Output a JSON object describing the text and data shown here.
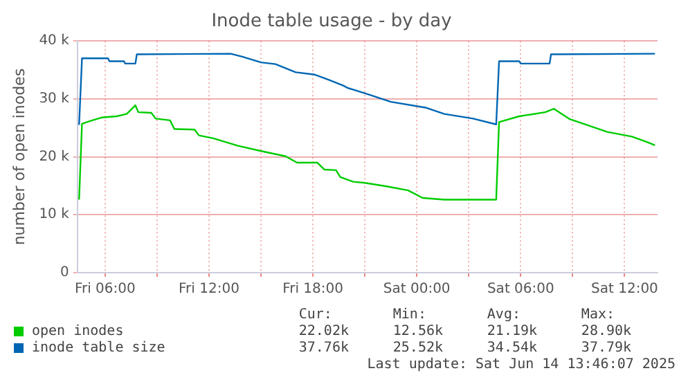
{
  "chart_data": {
    "type": "line",
    "title": "Inode table usage - by day",
    "ylabel": "number of open inodes",
    "xlim": [
      "2025-06-13T04:24",
      "2025-06-14T13:54"
    ],
    "xticks": [
      {
        "value": "2025-06-13T06:00",
        "label": "Fri 06:00"
      },
      {
        "value": "2025-06-13T09:00",
        "label": null
      },
      {
        "value": "2025-06-13T12:00",
        "label": "Fri 12:00"
      },
      {
        "value": "2025-06-13T15:00",
        "label": null
      },
      {
        "value": "2025-06-13T18:00",
        "label": "Fri 18:00"
      },
      {
        "value": "2025-06-13T21:00",
        "label": null
      },
      {
        "value": "2025-06-14T00:00",
        "label": "Sat 00:00"
      },
      {
        "value": "2025-06-14T03:00",
        "label": null
      },
      {
        "value": "2025-06-14T06:00",
        "label": "Sat 06:00"
      },
      {
        "value": "2025-06-14T09:00",
        "label": null
      },
      {
        "value": "2025-06-14T12:00",
        "label": "Sat 12:00"
      }
    ],
    "ylim": [
      0,
      40000
    ],
    "yticks": [
      0,
      {
        "value": 10000,
        "label": "10 k"
      },
      {
        "value": 20000,
        "label": "20 k"
      },
      {
        "value": 30000,
        "label": "30 k"
      },
      {
        "value": 40000,
        "label": "40 k"
      }
    ],
    "grid": true,
    "legend": "bottom",
    "marker": "none",
    "line_style": "solid",
    "series": [
      {
        "name": "open inodes",
        "color": "#00cc00",
        "x": [
          "2025-06-13T04:30",
          "2025-06-13T04:40",
          "2025-06-13T05:10",
          "2025-06-13T05:50",
          "2025-06-13T06:40",
          "2025-06-13T07:15",
          "2025-06-13T07:45",
          "2025-06-13T07:55",
          "2025-06-13T08:40",
          "2025-06-13T08:55",
          "2025-06-13T09:45",
          "2025-06-13T10:00",
          "2025-06-13T11:10",
          "2025-06-13T11:25",
          "2025-06-13T12:15",
          "2025-06-13T13:40",
          "2025-06-13T15:00",
          "2025-06-13T16:25",
          "2025-06-13T17:05",
          "2025-06-13T18:15",
          "2025-06-13T18:40",
          "2025-06-13T19:20",
          "2025-06-13T19:35",
          "2025-06-13T20:20",
          "2025-06-13T21:00",
          "2025-06-13T22:15",
          "2025-06-13T23:30",
          "2025-06-14T00:20",
          "2025-06-14T01:35",
          "2025-06-14T04:35",
          "2025-06-14T04:45",
          "2025-06-14T05:55",
          "2025-06-14T07:25",
          "2025-06-14T07:55",
          "2025-06-14T08:50",
          "2025-06-14T09:55",
          "2025-06-14T11:00",
          "2025-06-14T12:25",
          "2025-06-14T13:15",
          "2025-06-14T13:45"
        ],
        "values": [
          12600,
          25700,
          26200,
          26800,
          27000,
          27400,
          28900,
          27700,
          27600,
          26600,
          26300,
          24800,
          24700,
          23700,
          23200,
          21900,
          21000,
          20100,
          19000,
          19000,
          17800,
          17700,
          16500,
          15700,
          15500,
          14900,
          14200,
          12900,
          12600,
          12600,
          26000,
          27000,
          27700,
          28300,
          26500,
          25400,
          24300,
          23500,
          22600,
          22000
        ]
      },
      {
        "name": "inode table size",
        "color": "#0066b3",
        "x": [
          "2025-06-13T04:30",
          "2025-06-13T04:40",
          "2025-06-13T06:10",
          "2025-06-13T06:15",
          "2025-06-13T07:05",
          "2025-06-13T07:10",
          "2025-06-13T07:45",
          "2025-06-13T07:50",
          "2025-06-13T13:15",
          "2025-06-13T13:55",
          "2025-06-13T15:00",
          "2025-06-13T15:50",
          "2025-06-13T17:00",
          "2025-06-13T18:05",
          "2025-06-13T18:55",
          "2025-06-13T19:45",
          "2025-06-13T20:00",
          "2025-06-13T21:10",
          "2025-06-13T22:30",
          "2025-06-14T00:30",
          "2025-06-14T01:35",
          "2025-06-14T03:15",
          "2025-06-14T04:35",
          "2025-06-14T04:45",
          "2025-06-14T05:55",
          "2025-06-14T06:00",
          "2025-06-14T07:40",
          "2025-06-14T07:45",
          "2025-06-14T13:45"
        ],
        "values": [
          25500,
          37000,
          37000,
          36500,
          36500,
          36100,
          36100,
          37700,
          37800,
          37300,
          36300,
          36000,
          34600,
          34200,
          33300,
          32300,
          31900,
          30800,
          29500,
          28500,
          27400,
          26600,
          25600,
          36500,
          36500,
          36100,
          36100,
          37700,
          37800
        ]
      }
    ],
    "annotations": [
      "Cur:",
      "Min:",
      "Avg:",
      "Max:",
      "22.02k",
      "12.56k",
      "21.19k",
      "28.90k",
      "37.76k",
      "25.52k",
      "34.54k",
      "37.79k",
      "Last update: Sat Jun 14 13:46:07 2025"
    ]
  }
}
